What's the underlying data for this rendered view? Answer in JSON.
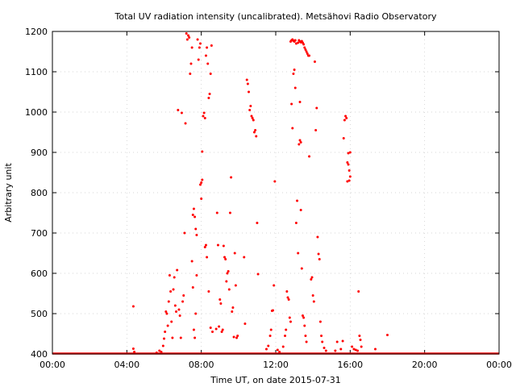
{
  "chart_data": {
    "type": "scatter",
    "title": "Total UV radiation intensity (uncalibrated). Metsähovi Radio Observatory",
    "xlabel": "Time UT, on date 2015-07-31",
    "ylabel": "Arbitrary unit",
    "xlim_hours": [
      0,
      24
    ],
    "ylim": [
      400,
      1200
    ],
    "x_ticks": [
      {
        "hours": 0,
        "label": "00:00"
      },
      {
        "hours": 4,
        "label": "04:00"
      },
      {
        "hours": 8,
        "label": "08:00"
      },
      {
        "hours": 12,
        "label": "12:00"
      },
      {
        "hours": 16,
        "label": "16:00"
      },
      {
        "hours": 20,
        "label": "20:00"
      },
      {
        "hours": 24,
        "label": "00:00"
      }
    ],
    "y_ticks": [
      400,
      500,
      600,
      700,
      800,
      900,
      1000,
      1100,
      1200
    ],
    "grid": true,
    "marker_color": "#ff0000",
    "baseline": {
      "from_hours": 0,
      "to_hours": 24,
      "value": 400
    },
    "series": [
      {
        "points": [
          [
            4.35,
            518
          ],
          [
            4.35,
            413
          ],
          [
            4.4,
            405
          ],
          [
            5.6,
            403
          ],
          [
            5.75,
            408
          ],
          [
            5.85,
            405
          ],
          [
            5.95,
            420
          ],
          [
            6.0,
            438
          ],
          [
            6.05,
            455
          ],
          [
            6.1,
            505
          ],
          [
            6.15,
            500
          ],
          [
            6.2,
            470
          ],
          [
            6.25,
            530
          ],
          [
            6.3,
            595
          ],
          [
            6.35,
            555
          ],
          [
            6.4,
            480
          ],
          [
            6.45,
            440
          ],
          [
            6.5,
            560
          ],
          [
            6.55,
            590
          ],
          [
            6.6,
            520
          ],
          [
            6.65,
            505
          ],
          [
            6.7,
            608
          ],
          [
            6.75,
            1005
          ],
          [
            6.8,
            510
          ],
          [
            6.85,
            495
          ],
          [
            6.9,
            440
          ],
          [
            6.95,
            998
          ],
          [
            7.0,
            530
          ],
          [
            7.05,
            545
          ],
          [
            7.1,
            700
          ],
          [
            7.15,
            972
          ],
          [
            7.2,
            1195
          ],
          [
            7.25,
            1180
          ],
          [
            7.3,
            1190
          ],
          [
            7.35,
            1185
          ],
          [
            7.4,
            1095
          ],
          [
            7.45,
            1120
          ],
          [
            7.5,
            1160
          ],
          [
            7.55,
            745
          ],
          [
            7.6,
            760
          ],
          [
            7.65,
            740
          ],
          [
            7.7,
            710
          ],
          [
            7.75,
            695
          ],
          [
            7.5,
            630
          ],
          [
            7.55,
            565
          ],
          [
            7.6,
            460
          ],
          [
            7.65,
            440
          ],
          [
            7.7,
            500
          ],
          [
            7.75,
            595
          ],
          [
            7.8,
            1180
          ],
          [
            7.85,
            1130
          ],
          [
            7.9,
            1160
          ],
          [
            7.95,
            1170
          ],
          [
            8.0,
            825
          ],
          [
            8.05,
            832
          ],
          [
            7.95,
            820
          ],
          [
            8.0,
            785
          ],
          [
            8.05,
            902
          ],
          [
            8.1,
            990
          ],
          [
            8.15,
            998
          ],
          [
            8.2,
            985
          ],
          [
            8.25,
            1140
          ],
          [
            8.3,
            1160
          ],
          [
            8.35,
            1120
          ],
          [
            8.4,
            1035
          ],
          [
            8.45,
            1045
          ],
          [
            8.5,
            1095
          ],
          [
            8.55,
            1165
          ],
          [
            8.2,
            665
          ],
          [
            8.25,
            670
          ],
          [
            8.3,
            640
          ],
          [
            8.4,
            555
          ],
          [
            8.5,
            465
          ],
          [
            8.6,
            455
          ],
          [
            8.8,
            462
          ],
          [
            8.85,
            750
          ],
          [
            8.9,
            670
          ],
          [
            8.95,
            468
          ],
          [
            9.0,
            535
          ],
          [
            9.05,
            525
          ],
          [
            9.1,
            455
          ],
          [
            9.15,
            460
          ],
          [
            9.2,
            668
          ],
          [
            9.25,
            640
          ],
          [
            9.3,
            635
          ],
          [
            9.35,
            580
          ],
          [
            9.4,
            600
          ],
          [
            9.45,
            605
          ],
          [
            9.5,
            560
          ],
          [
            9.55,
            750
          ],
          [
            9.6,
            838
          ],
          [
            9.65,
            505
          ],
          [
            9.7,
            515
          ],
          [
            9.75,
            442
          ],
          [
            9.8,
            650
          ],
          [
            9.85,
            570
          ],
          [
            9.9,
            440
          ],
          [
            9.95,
            445
          ],
          [
            10.3,
            640
          ],
          [
            10.35,
            475
          ],
          [
            10.45,
            1080
          ],
          [
            10.5,
            1070
          ],
          [
            10.55,
            1050
          ],
          [
            10.6,
            1005
          ],
          [
            10.65,
            1015
          ],
          [
            10.7,
            990
          ],
          [
            10.75,
            985
          ],
          [
            10.8,
            980
          ],
          [
            10.85,
            950
          ],
          [
            10.9,
            955
          ],
          [
            10.95,
            940
          ],
          [
            11.0,
            725
          ],
          [
            11.05,
            598
          ],
          [
            11.5,
            412
          ],
          [
            11.6,
            420
          ],
          [
            11.7,
            445
          ],
          [
            11.75,
            460
          ],
          [
            11.8,
            507
          ],
          [
            11.85,
            508
          ],
          [
            11.9,
            570
          ],
          [
            11.95,
            828
          ],
          [
            12.1,
            410
          ],
          [
            12.2,
            405
          ],
          [
            12.4,
            418
          ],
          [
            12.5,
            445
          ],
          [
            12.55,
            460
          ],
          [
            12.6,
            555
          ],
          [
            12.65,
            540
          ],
          [
            12.7,
            535
          ],
          [
            12.75,
            490
          ],
          [
            12.8,
            480
          ],
          [
            12.85,
            1020
          ],
          [
            12.9,
            960
          ],
          [
            12.95,
            1095
          ],
          [
            13.0,
            1105
          ],
          [
            13.05,
            1060
          ],
          [
            13.1,
            725
          ],
          [
            13.15,
            780
          ],
          [
            13.2,
            650
          ],
          [
            12.8,
            1175
          ],
          [
            12.85,
            1178
          ],
          [
            12.9,
            1180
          ],
          [
            12.95,
            1177
          ],
          [
            13.0,
            1175
          ],
          [
            13.05,
            1178
          ],
          [
            13.1,
            1170
          ],
          [
            13.2,
            1172
          ],
          [
            13.25,
            1178
          ],
          [
            13.3,
            1175
          ],
          [
            13.35,
            1173
          ],
          [
            13.4,
            1176
          ],
          [
            13.45,
            1172
          ],
          [
            13.5,
            1168
          ],
          [
            13.55,
            1160
          ],
          [
            13.6,
            1155
          ],
          [
            13.65,
            1150
          ],
          [
            13.7,
            1145
          ],
          [
            13.75,
            1140
          ],
          [
            13.8,
            1140
          ],
          [
            13.25,
            920
          ],
          [
            13.3,
            930
          ],
          [
            13.35,
            925
          ],
          [
            13.3,
            1025
          ],
          [
            13.35,
            757
          ],
          [
            13.4,
            612
          ],
          [
            13.45,
            495
          ],
          [
            13.5,
            490
          ],
          [
            13.55,
            470
          ],
          [
            13.6,
            445
          ],
          [
            13.65,
            430
          ],
          [
            13.8,
            890
          ],
          [
            13.9,
            585
          ],
          [
            13.95,
            590
          ],
          [
            14.0,
            545
          ],
          [
            14.05,
            530
          ],
          [
            14.1,
            1125
          ],
          [
            14.15,
            955
          ],
          [
            14.2,
            1010
          ],
          [
            14.25,
            690
          ],
          [
            14.3,
            648
          ],
          [
            14.35,
            635
          ],
          [
            14.4,
            480
          ],
          [
            14.45,
            445
          ],
          [
            14.5,
            430
          ],
          [
            14.6,
            415
          ],
          [
            14.7,
            408
          ],
          [
            15.2,
            408
          ],
          [
            15.3,
            430
          ],
          [
            15.5,
            412
          ],
          [
            15.6,
            432
          ],
          [
            15.65,
            935
          ],
          [
            15.7,
            980
          ],
          [
            15.75,
            990
          ],
          [
            15.8,
            985
          ],
          [
            15.85,
            875
          ],
          [
            15.9,
            870
          ],
          [
            15.95,
            855
          ],
          [
            16.0,
            840
          ],
          [
            15.85,
            828
          ],
          [
            15.9,
            898
          ],
          [
            15.95,
            830
          ],
          [
            16.0,
            900
          ],
          [
            16.1,
            418
          ],
          [
            16.2,
            412
          ],
          [
            16.3,
            410
          ],
          [
            16.4,
            408
          ],
          [
            16.45,
            555
          ],
          [
            16.5,
            445
          ],
          [
            16.55,
            435
          ],
          [
            16.6,
            418
          ],
          [
            17.35,
            412
          ],
          [
            18.0,
            447
          ]
        ]
      }
    ]
  }
}
